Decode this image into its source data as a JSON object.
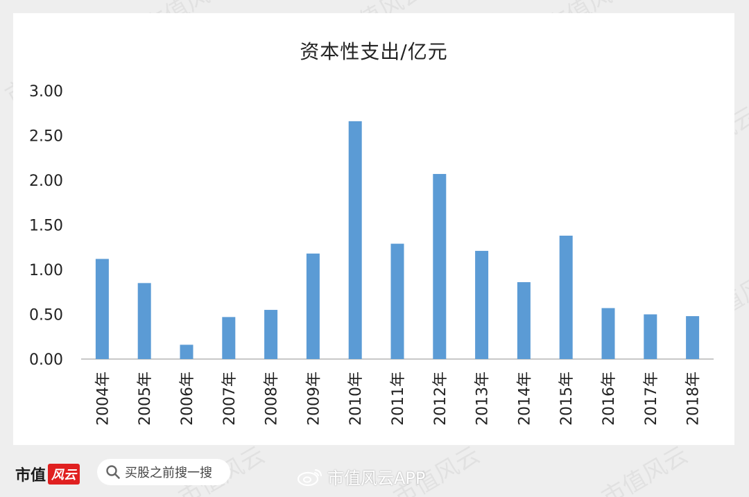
{
  "chart_data": {
    "type": "bar",
    "title": "资本性支出/亿元",
    "categories": [
      "2004年",
      "2005年",
      "2006年",
      "2007年",
      "2008年",
      "2009年",
      "2010年",
      "2011年",
      "2012年",
      "2013年",
      "2014年",
      "2015年",
      "2016年",
      "2017年",
      "2018年"
    ],
    "values": [
      1.12,
      0.85,
      0.16,
      0.47,
      0.55,
      1.18,
      2.66,
      1.29,
      2.07,
      1.21,
      0.86,
      1.38,
      0.57,
      0.5,
      0.48
    ],
    "yticks": [
      "0.00",
      "0.50",
      "1.00",
      "1.50",
      "2.00",
      "2.50",
      "3.00"
    ],
    "ylim": [
      0,
      3
    ],
    "bar_color": "#5b9bd5",
    "grid": false,
    "legend": "none"
  },
  "watermark": {
    "text": "市值风云"
  },
  "footer": {
    "brand": "市值",
    "brand_badge": "风云",
    "search_label": "买股之前搜一搜",
    "weibo_label": "市值风云APP"
  },
  "icons": {
    "search": "search-icon",
    "weibo": "weibo-icon"
  }
}
